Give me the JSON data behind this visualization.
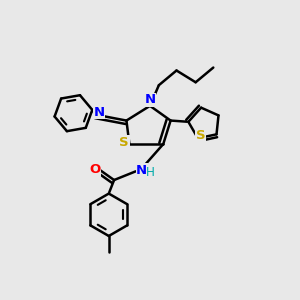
{
  "background_color": "#e8e8e8",
  "bond_color": "#000000",
  "N_color": "#0000ff",
  "S_color": "#c8a800",
  "O_color": "#ff0000",
  "H_color": "#00aaaa",
  "line_width": 1.8,
  "font_size": 9.5,
  "fig_w": 3.0,
  "fig_h": 3.0,
  "dpi": 100,
  "xlim": [
    0,
    1
  ],
  "ylim": [
    0,
    1
  ]
}
